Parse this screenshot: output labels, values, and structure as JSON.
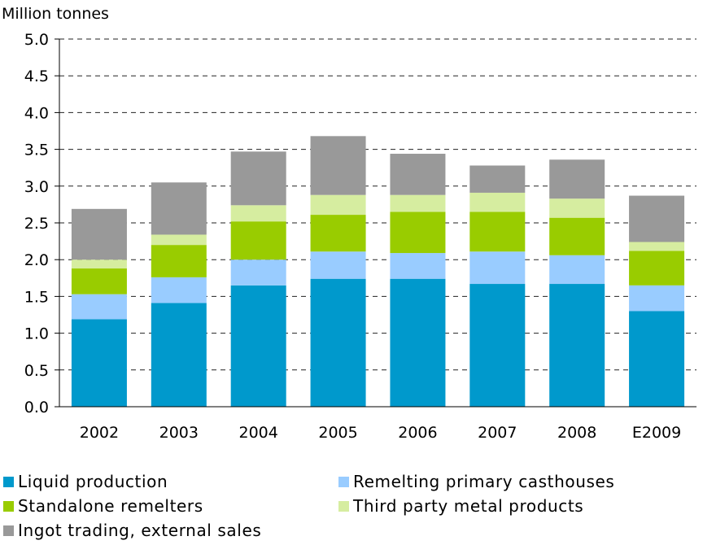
{
  "chart_data": {
    "type": "bar",
    "stacked": true,
    "ylabel": "Million tonnes",
    "ylim": [
      0,
      5.0
    ],
    "yticks": [
      "0.0",
      "0.5",
      "1.0",
      "1.5",
      "2.0",
      "2.5",
      "3.0",
      "3.5",
      "4.0",
      "4.5",
      "5.0"
    ],
    "grid": "horizontal dashed",
    "legend_position": "bottom",
    "categories": [
      "2002",
      "2003",
      "2004",
      "2005",
      "2006",
      "2007",
      "2008",
      "E2009"
    ],
    "series": [
      {
        "name": "Liquid production",
        "color": "#0099cc",
        "values": [
          1.19,
          1.41,
          1.65,
          1.74,
          1.74,
          1.67,
          1.67,
          1.3
        ]
      },
      {
        "name": "Remelting primary casthouses",
        "color": "#99ccff",
        "values": [
          0.34,
          0.35,
          0.35,
          0.37,
          0.35,
          0.44,
          0.39,
          0.35
        ]
      },
      {
        "name": "Standalone remelters",
        "color": "#99cc00",
        "values": [
          0.35,
          0.44,
          0.52,
          0.5,
          0.56,
          0.54,
          0.51,
          0.47
        ]
      },
      {
        "name": "Third party metal products",
        "color": "#d6eda0",
        "values": [
          0.12,
          0.14,
          0.22,
          0.27,
          0.23,
          0.26,
          0.26,
          0.12
        ]
      },
      {
        "name": "Ingot trading, external sales",
        "color": "#999999",
        "values": [
          0.69,
          0.71,
          0.73,
          0.8,
          0.56,
          0.37,
          0.53,
          0.63
        ]
      }
    ]
  }
}
